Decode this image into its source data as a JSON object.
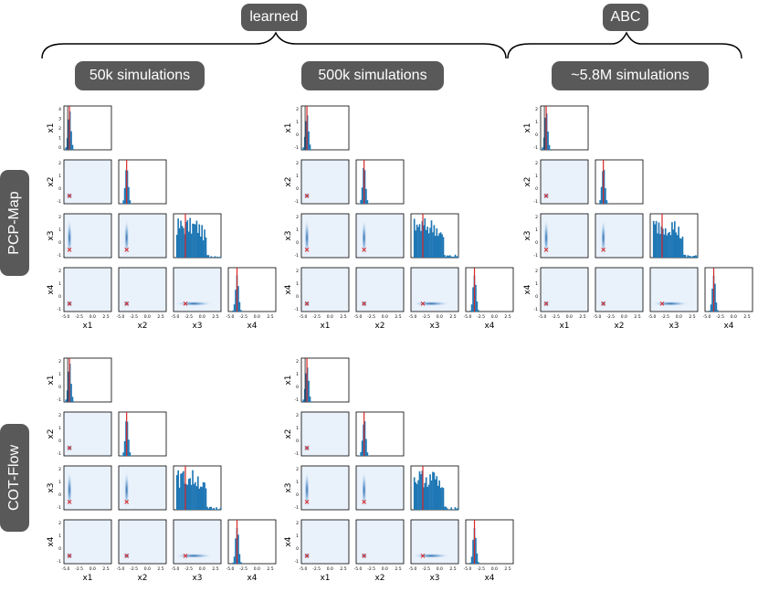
{
  "header": {
    "learned_label": "learned",
    "abc_label": "ABC",
    "columns": [
      {
        "id": "c50k",
        "label": "50k simulations"
      },
      {
        "id": "c500k",
        "label": "500k simulations"
      },
      {
        "id": "c58m",
        "label": "~5.8M simulations"
      }
    ],
    "rows": [
      {
        "id": "pcp",
        "label": "PCP-Map"
      },
      {
        "id": "cot",
        "label": "COT-Flow"
      }
    ]
  },
  "colors": {
    "hist": "#1f77b4",
    "truth_line": "#d62728",
    "density_bg": "#e9f1fb",
    "density_core": "#2c6fb0",
    "pill_bg": "#595959"
  },
  "chart_data": [
    {
      "type": "pairplot",
      "row": "PCP-Map",
      "column": "50k simulations",
      "variables": [
        "x1",
        "x2",
        "x3",
        "x4"
      ],
      "diag_ylim": [
        [
          -1,
          4
        ],
        [
          -1,
          2
        ],
        [
          -1,
          2
        ],
        [
          -1,
          2
        ]
      ],
      "diag_xlim": [
        -5,
        1
      ],
      "x_tick_labels": [
        "-5.0",
        "-2.5",
        "0.0",
        "2.5"
      ],
      "y_tick_labels": {
        "x1": [
          "4",
          "3",
          "2",
          "1",
          "0"
        ],
        "x2": [
          "2",
          "1",
          "0",
          "-1"
        ],
        "x3": [
          "2",
          "1",
          "0",
          "-1"
        ],
        "x4": [
          "2",
          "1",
          "0",
          "-1"
        ]
      },
      "true_params": [
        -4.3,
        -4.0,
        -3.5,
        -3.9
      ],
      "x3_spread": "wide",
      "x3_mean": -3.0
    },
    {
      "type": "pairplot",
      "row": "PCP-Map",
      "column": "500k simulations",
      "variables": [
        "x1",
        "x2",
        "x3",
        "x4"
      ],
      "diag_xlim": [
        -5,
        1
      ],
      "x_tick_labels": [
        "-5.0",
        "-2.5",
        "0.0",
        "2.5"
      ],
      "true_params": [
        -4.3,
        -4.0,
        -3.5,
        -3.9
      ],
      "x3_spread": "wide",
      "x3_mean": -3.2
    },
    {
      "type": "pairplot",
      "row": "PCP-Map",
      "column": "~5.8M simulations",
      "method": "ABC",
      "variables": [
        "x1",
        "x2",
        "x3",
        "x4"
      ],
      "diag_xlim": [
        -5,
        1
      ],
      "x_tick_labels": [
        "-5.0",
        "-2.5",
        "0.0",
        "2.5"
      ],
      "true_params": [
        -4.3,
        -4.0,
        -3.5,
        -3.9
      ],
      "x3_spread": "wide",
      "x3_mean": -3.6
    },
    {
      "type": "pairplot",
      "row": "COT-Flow",
      "column": "50k simulations",
      "variables": [
        "x1",
        "x2",
        "x3",
        "x4"
      ],
      "diag_xlim": [
        -5,
        1
      ],
      "x_tick_labels": [
        "-5.0",
        "-2.5",
        "0.0",
        "2.5"
      ],
      "true_params": [
        -4.3,
        -4.0,
        -3.5,
        -3.9
      ],
      "x3_spread": "wide",
      "x3_mean": -2.9
    },
    {
      "type": "pairplot",
      "row": "COT-Flow",
      "column": "500k simulations",
      "variables": [
        "x1",
        "x2",
        "x3",
        "x4"
      ],
      "diag_xlim": [
        -5,
        1
      ],
      "x_tick_labels": [
        "-5.0",
        "-2.5",
        "0.0",
        "2.5"
      ],
      "true_params": [
        -4.3,
        -4.0,
        -3.5,
        -3.9
      ],
      "x3_spread": "wide",
      "x3_mean": -3.0
    }
  ]
}
